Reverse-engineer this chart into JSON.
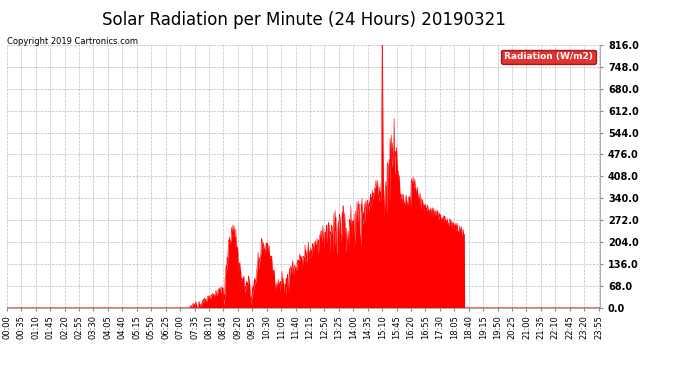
{
  "title": "Solar Radiation per Minute (24 Hours) 20190321",
  "copyright_text": "Copyright 2019 Cartronics.com",
  "legend_label": "Radiation (W/m2)",
  "ylim": [
    0.0,
    816.0
  ],
  "yticks": [
    0.0,
    68.0,
    136.0,
    204.0,
    272.0,
    340.0,
    408.0,
    476.0,
    544.0,
    612.0,
    680.0,
    748.0,
    816.0
  ],
  "fill_color": "#ff0000",
  "line_color": "#ff0000",
  "background_color": "#ffffff",
  "grid_color": "#aaaaaa",
  "title_fontsize": 12,
  "tick_fontsize": 6,
  "label_fontsize": 7,
  "legend_bg": "#dd0000",
  "legend_text_color": "#ffffff",
  "dashed_line_color": "#ff0000",
  "num_minutes": 1440,
  "tick_interval": 35
}
